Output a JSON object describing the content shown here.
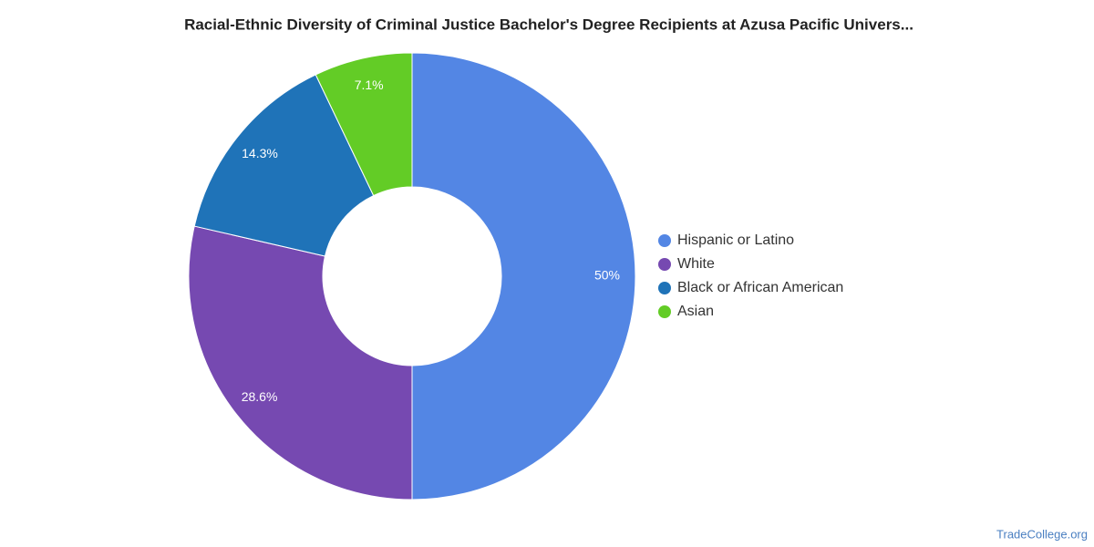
{
  "chart_data": {
    "type": "pie",
    "title": "Racial-Ethnic Diversity of Criminal Justice Bachelor's Degree Recipients at Azusa Pacific Univers...",
    "categories": [
      "Hispanic or Latino",
      "White",
      "Black or African American",
      "Asian"
    ],
    "values": [
      50,
      28.6,
      14.3,
      7.1
    ],
    "value_labels": [
      "50%",
      "28.6%",
      "14.3%",
      "7.1%"
    ],
    "colors": [
      "#5386e4",
      "#7649b1",
      "#1f73b8",
      "#63cc26"
    ],
    "legend": "right"
  },
  "watermark": "TradeCollege.org"
}
